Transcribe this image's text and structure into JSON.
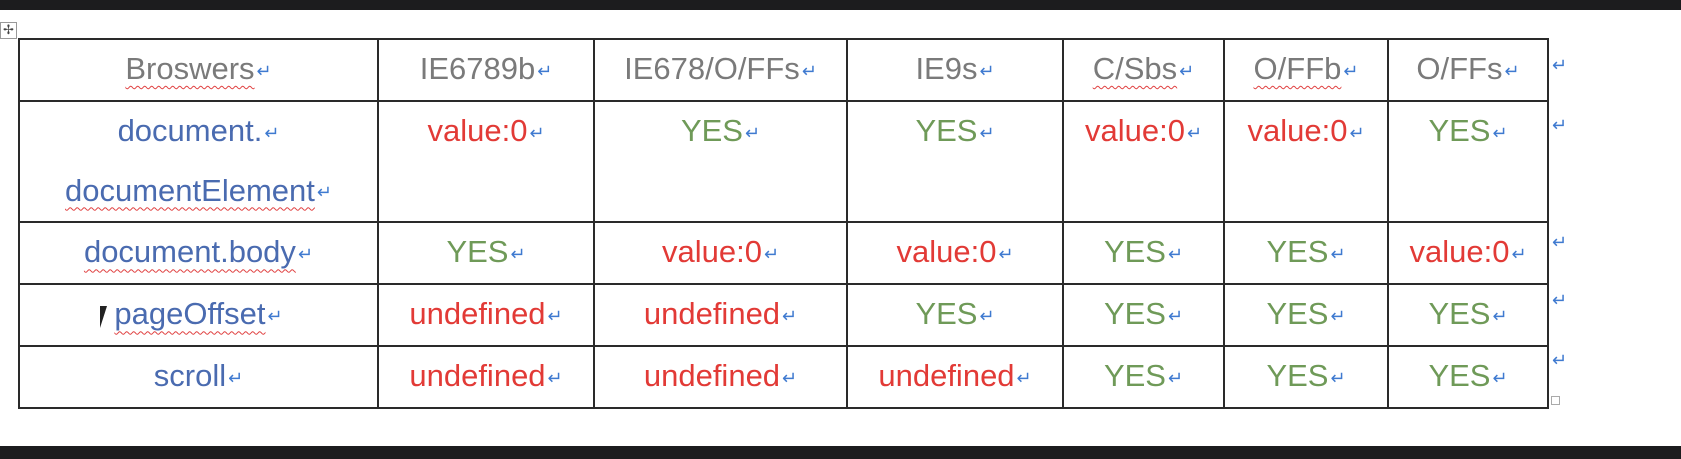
{
  "table": {
    "header": [
      "Broswers",
      "IE6789b",
      "IE678/O/FFs",
      "IE9s",
      "C/Sbs",
      "O/FFb",
      "O/FFs"
    ],
    "rows": [
      {
        "label_lines": [
          "document.",
          "documentElement"
        ],
        "cells": [
          "value:0",
          "YES",
          "YES",
          "value:0",
          "value:0",
          "YES"
        ]
      },
      {
        "label_lines": [
          "document.body"
        ],
        "cells": [
          "YES",
          "value:0",
          "value:0",
          "YES",
          "YES",
          "value:0"
        ]
      },
      {
        "label_lines": [
          "pageOffset"
        ],
        "cells": [
          "undefined",
          "undefined",
          "YES",
          "YES",
          "YES",
          "YES"
        ]
      },
      {
        "label_lines": [
          "scroll"
        ],
        "cells": [
          "undefined",
          "undefined",
          "undefined",
          "YES",
          "YES",
          "YES"
        ]
      }
    ]
  },
  "colors": {
    "header": "#7a7a7a",
    "label": "#4a6bb0",
    "yes": "#6f9a58",
    "no": "#e23a36",
    "paragraph_mark": "#3f7ad0"
  },
  "icons": {
    "table_move": "move-handle-icon",
    "paragraph_mark": "return-arrow-icon",
    "table_resize": "resize-handle-icon"
  }
}
